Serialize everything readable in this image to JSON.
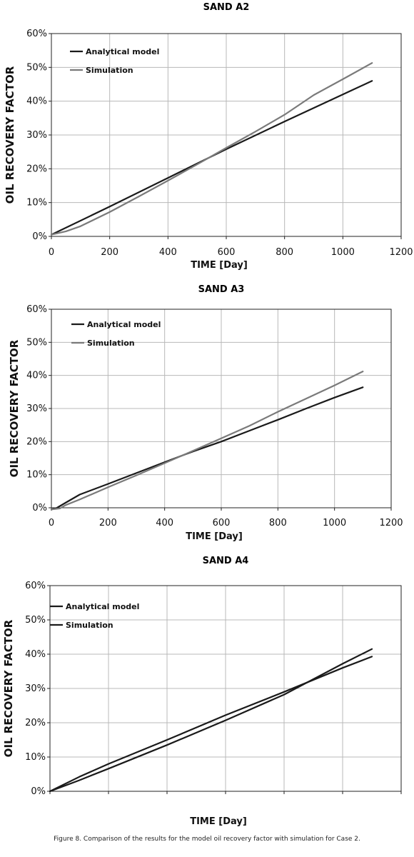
{
  "caption": "Figure 8. Comparison of the results for the model oil recovery factor with simulation for Case 2.",
  "colors": {
    "analytical": "#1a1a1a",
    "simulation": "#7a7a7a",
    "grid": "#b8b8b8",
    "axis": "#222222"
  },
  "chart_data": [
    {
      "type": "line",
      "title": "SAND A2",
      "xlabel": "TIME [Day]",
      "ylabel": "OIL RECOVERY FACTOR",
      "xlim": [
        0,
        1200
      ],
      "ylim": [
        0,
        0.6
      ],
      "x_ticks": [
        "0",
        "200",
        "400",
        "600",
        "800",
        "1000",
        "1200"
      ],
      "y_ticks": [
        "0%",
        "10%",
        "20%",
        "30%",
        "40%",
        "50%",
        "60%"
      ],
      "grid": true,
      "legend": "top-left",
      "series": [
        {
          "name": "Analytical model",
          "color": "#1a1a1a",
          "x": [
            0,
            200,
            400,
            600,
            800,
            1000,
            1100
          ],
          "y": [
            0.005,
            0.088,
            0.173,
            0.258,
            0.34,
            0.42,
            0.46
          ]
        },
        {
          "name": "Simulation",
          "color": "#7a7a7a",
          "x": [
            0,
            50,
            100,
            200,
            300,
            400,
            500,
            600,
            700,
            800,
            900,
            1000,
            1100
          ],
          "y": [
            0.005,
            0.015,
            0.03,
            0.072,
            0.118,
            0.165,
            0.213,
            0.262,
            0.31,
            0.36,
            0.418,
            0.465,
            0.513
          ]
        }
      ]
    },
    {
      "type": "line",
      "title": "SAND A3",
      "xlabel": "TIME [Day]",
      "ylabel": "OIL RECOVERY FACTOR",
      "xlim": [
        0,
        1200
      ],
      "ylim": [
        0,
        0.6
      ],
      "x_ticks": [
        "0",
        "200",
        "400",
        "600",
        "800",
        "1000",
        "1200"
      ],
      "y_ticks": [
        "0%",
        "10%",
        "20%",
        "30%",
        "40%",
        "50%",
        "60%"
      ],
      "grid": true,
      "legend": "top-left",
      "series": [
        {
          "name": "Analytical model",
          "color": "#1a1a1a",
          "x": [
            0,
            20,
            50,
            100,
            200,
            300,
            400,
            500,
            600,
            700,
            800,
            900,
            1000,
            1100
          ],
          "y": [
            -0.005,
            0.0,
            0.015,
            0.04,
            0.072,
            0.105,
            0.138,
            0.17,
            0.2,
            0.233,
            0.266,
            0.3,
            0.333,
            0.364
          ]
        },
        {
          "name": "Simulation",
          "color": "#7a7a7a",
          "x": [
            0,
            30,
            50,
            100,
            200,
            300,
            400,
            500,
            600,
            700,
            800,
            900,
            1000,
            1100
          ],
          "y": [
            -0.005,
            -0.002,
            0.008,
            0.025,
            0.062,
            0.098,
            0.135,
            0.172,
            0.21,
            0.248,
            0.29,
            0.33,
            0.37,
            0.412
          ]
        }
      ]
    },
    {
      "type": "line",
      "title": "SAND A4",
      "xlabel": "TIME [Day]",
      "ylabel": "OIL RECOVERY FACTOR",
      "xlim": [
        0,
        1200
      ],
      "ylim": [
        0,
        0.6
      ],
      "x_ticks": [],
      "y_ticks": [
        "0%",
        "10%",
        "20%",
        "30%",
        "40%",
        "50%",
        "60%"
      ],
      "grid": true,
      "legend": "top-left",
      "series": [
        {
          "name": "Analytical model",
          "color": "#1a1a1a",
          "x": [
            0,
            100,
            200,
            400,
            600,
            800,
            1000,
            1100
          ],
          "y": [
            0.0,
            0.042,
            0.08,
            0.15,
            0.222,
            0.29,
            0.36,
            0.393
          ]
        },
        {
          "name": "Simulation",
          "color": "#1a1a1a",
          "x": [
            0,
            100,
            200,
            400,
            600,
            800,
            1000,
            1100
          ],
          "y": [
            0.0,
            0.032,
            0.066,
            0.135,
            0.207,
            0.282,
            0.372,
            0.415
          ]
        }
      ]
    }
  ]
}
